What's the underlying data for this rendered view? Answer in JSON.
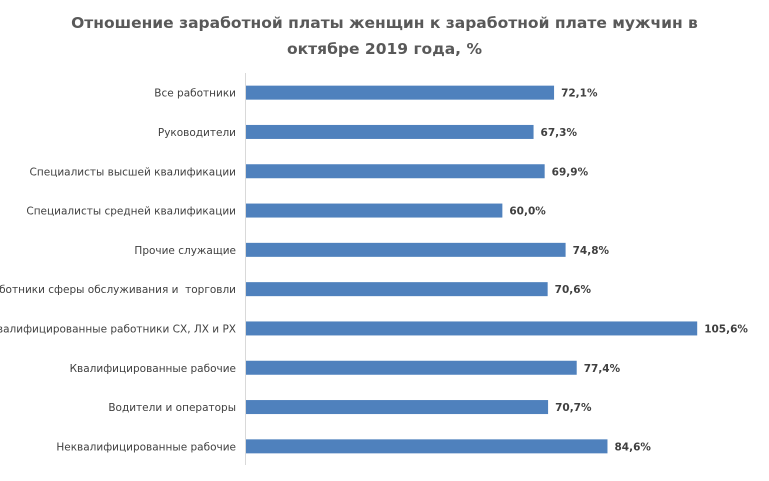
{
  "chart_data": {
    "type": "bar",
    "orientation": "horizontal",
    "title_lines": [
      "Отношение заработной платы женщин к заработной плате мужчин в",
      "октябре 2019 года, %"
    ],
    "categories": [
      "Все работники",
      "Руководители",
      "Специалисты высшей квалификации",
      "Специалисты средней квалификации",
      "Прочие служащие",
      "Работники сферы обслуживания и  торговли",
      "Квалифицированные работники СХ, ЛХ и РХ",
      "Квалифицированные рабочие",
      "Водители и операторы",
      "Неквалифицированные рабочие"
    ],
    "values": [
      72.1,
      67.3,
      69.9,
      60.0,
      74.8,
      70.6,
      105.6,
      77.4,
      70.7,
      84.6
    ],
    "value_labels": [
      "72,1%",
      "67,3%",
      "69,9%",
      "60,0%",
      "74,8%",
      "70,6%",
      "105,6%",
      "77,4%",
      "70,7%",
      "84,6%"
    ],
    "xlim": [
      0,
      110
    ],
    "bar_color": "#4f81bd",
    "grid": false,
    "legend": "none"
  }
}
